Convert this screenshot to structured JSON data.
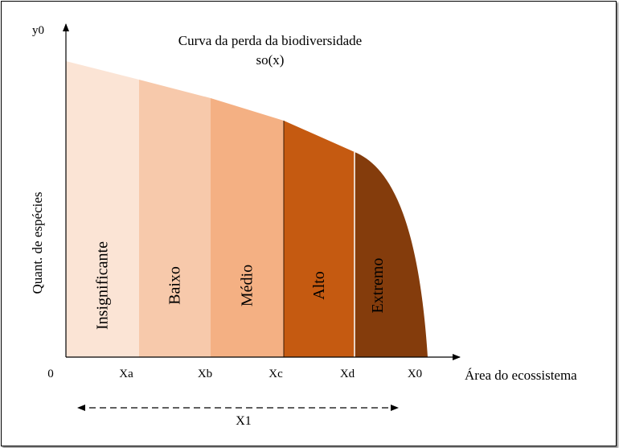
{
  "chart_data": {
    "type": "area",
    "title": "Curva da perda da biodiversidade",
    "subtitle": "so(x)",
    "xlabel": "Área do ecossistema",
    "ylabel": "Quant. de espécies",
    "y_axis_top_label": "y0",
    "origin_label": "0",
    "x_ticks": [
      "Xa",
      "Xb",
      "Xc",
      "Xd",
      "X0"
    ],
    "span_label": "X1",
    "bands": [
      {
        "name": "Insignificante",
        "color": "#fbe4d5"
      },
      {
        "name": "Baixo",
        "color": "#f7c9ab"
      },
      {
        "name": "Médio",
        "color": "#f4b083"
      },
      {
        "name": "Alto",
        "color": "#c55a11"
      },
      {
        "name": "Extremo",
        "color": "#843c0c"
      }
    ]
  }
}
